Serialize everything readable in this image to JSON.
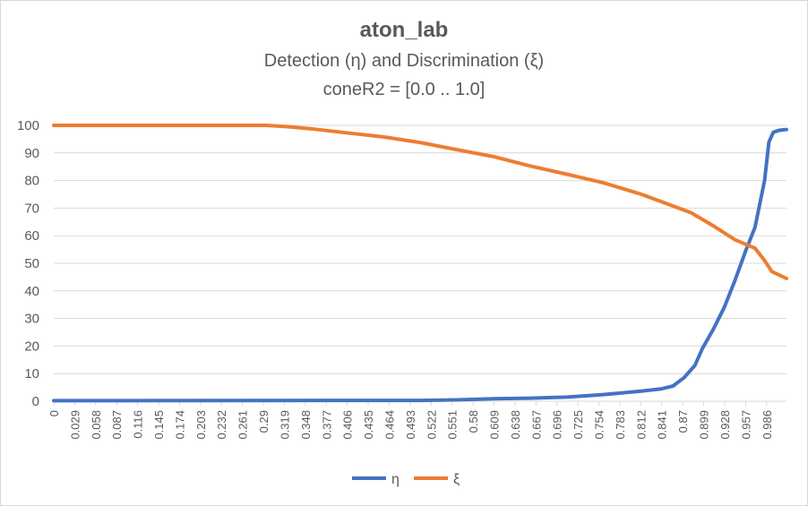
{
  "chart_data": {
    "type": "line",
    "title": "aton_lab",
    "subtitle": "Detection (η) and Discrimination (ξ)",
    "subtitle2": "coneR2 = [0.0 .. 1.0]",
    "xlabel": "",
    "ylabel": "",
    "ylim": [
      0,
      100
    ],
    "yticks": [
      0,
      10,
      20,
      30,
      40,
      50,
      60,
      70,
      80,
      90,
      100
    ],
    "xlim": [
      0,
      1
    ],
    "xticks": [
      "0",
      "0.029",
      "0.058",
      "0.087",
      "0.116",
      "0.145",
      "0.174",
      "0.203",
      "0.232",
      "0.261",
      "0.29",
      "0.319",
      "0.348",
      "0.377",
      "0.406",
      "0.435",
      "0.464",
      "0.493",
      "0.522",
      "0.551",
      "0.58",
      "0.609",
      "0.638",
      "0.667",
      "0.696",
      "0.725",
      "0.754",
      "0.783",
      "0.812",
      "0.841",
      "0.87",
      "0.899",
      "0.928",
      "0.957",
      "0.986"
    ],
    "grid": true,
    "legend_position": "bottom",
    "series": [
      {
        "name": "η",
        "color": "#4472c4",
        "points": [
          [
            0,
            0.2
          ],
          [
            0.5,
            0.3
          ],
          [
            0.55,
            0.5
          ],
          [
            0.6,
            0.9
          ],
          [
            0.65,
            1.1
          ],
          [
            0.7,
            1.5
          ],
          [
            0.75,
            2.4
          ],
          [
            0.8,
            3.6
          ],
          [
            0.83,
            4.5
          ],
          [
            0.845,
            5.5
          ],
          [
            0.86,
            8.5
          ],
          [
            0.875,
            13
          ],
          [
            0.885,
            19
          ],
          [
            0.9,
            26
          ],
          [
            0.915,
            34
          ],
          [
            0.93,
            44
          ],
          [
            0.945,
            55
          ],
          [
            0.957,
            63
          ],
          [
            0.97,
            80
          ],
          [
            0.976,
            94
          ],
          [
            0.982,
            97.5
          ],
          [
            0.99,
            98.2
          ],
          [
            1.0,
            98.5
          ]
        ]
      },
      {
        "name": "ξ",
        "color": "#ed7d31",
        "points": [
          [
            0,
            100
          ],
          [
            0.29,
            100
          ],
          [
            0.32,
            99.5
          ],
          [
            0.35,
            98.8
          ],
          [
            0.4,
            97.3
          ],
          [
            0.45,
            95.8
          ],
          [
            0.5,
            93.8
          ],
          [
            0.55,
            91.2
          ],
          [
            0.6,
            88.7
          ],
          [
            0.65,
            85.3
          ],
          [
            0.7,
            82.3
          ],
          [
            0.75,
            79.2
          ],
          [
            0.8,
            75.2
          ],
          [
            0.85,
            70.3
          ],
          [
            0.87,
            68.3
          ],
          [
            0.9,
            63.6
          ],
          [
            0.93,
            58.5
          ],
          [
            0.957,
            55.5
          ],
          [
            0.97,
            51
          ],
          [
            0.98,
            47
          ],
          [
            1.0,
            44.5
          ]
        ]
      }
    ]
  }
}
